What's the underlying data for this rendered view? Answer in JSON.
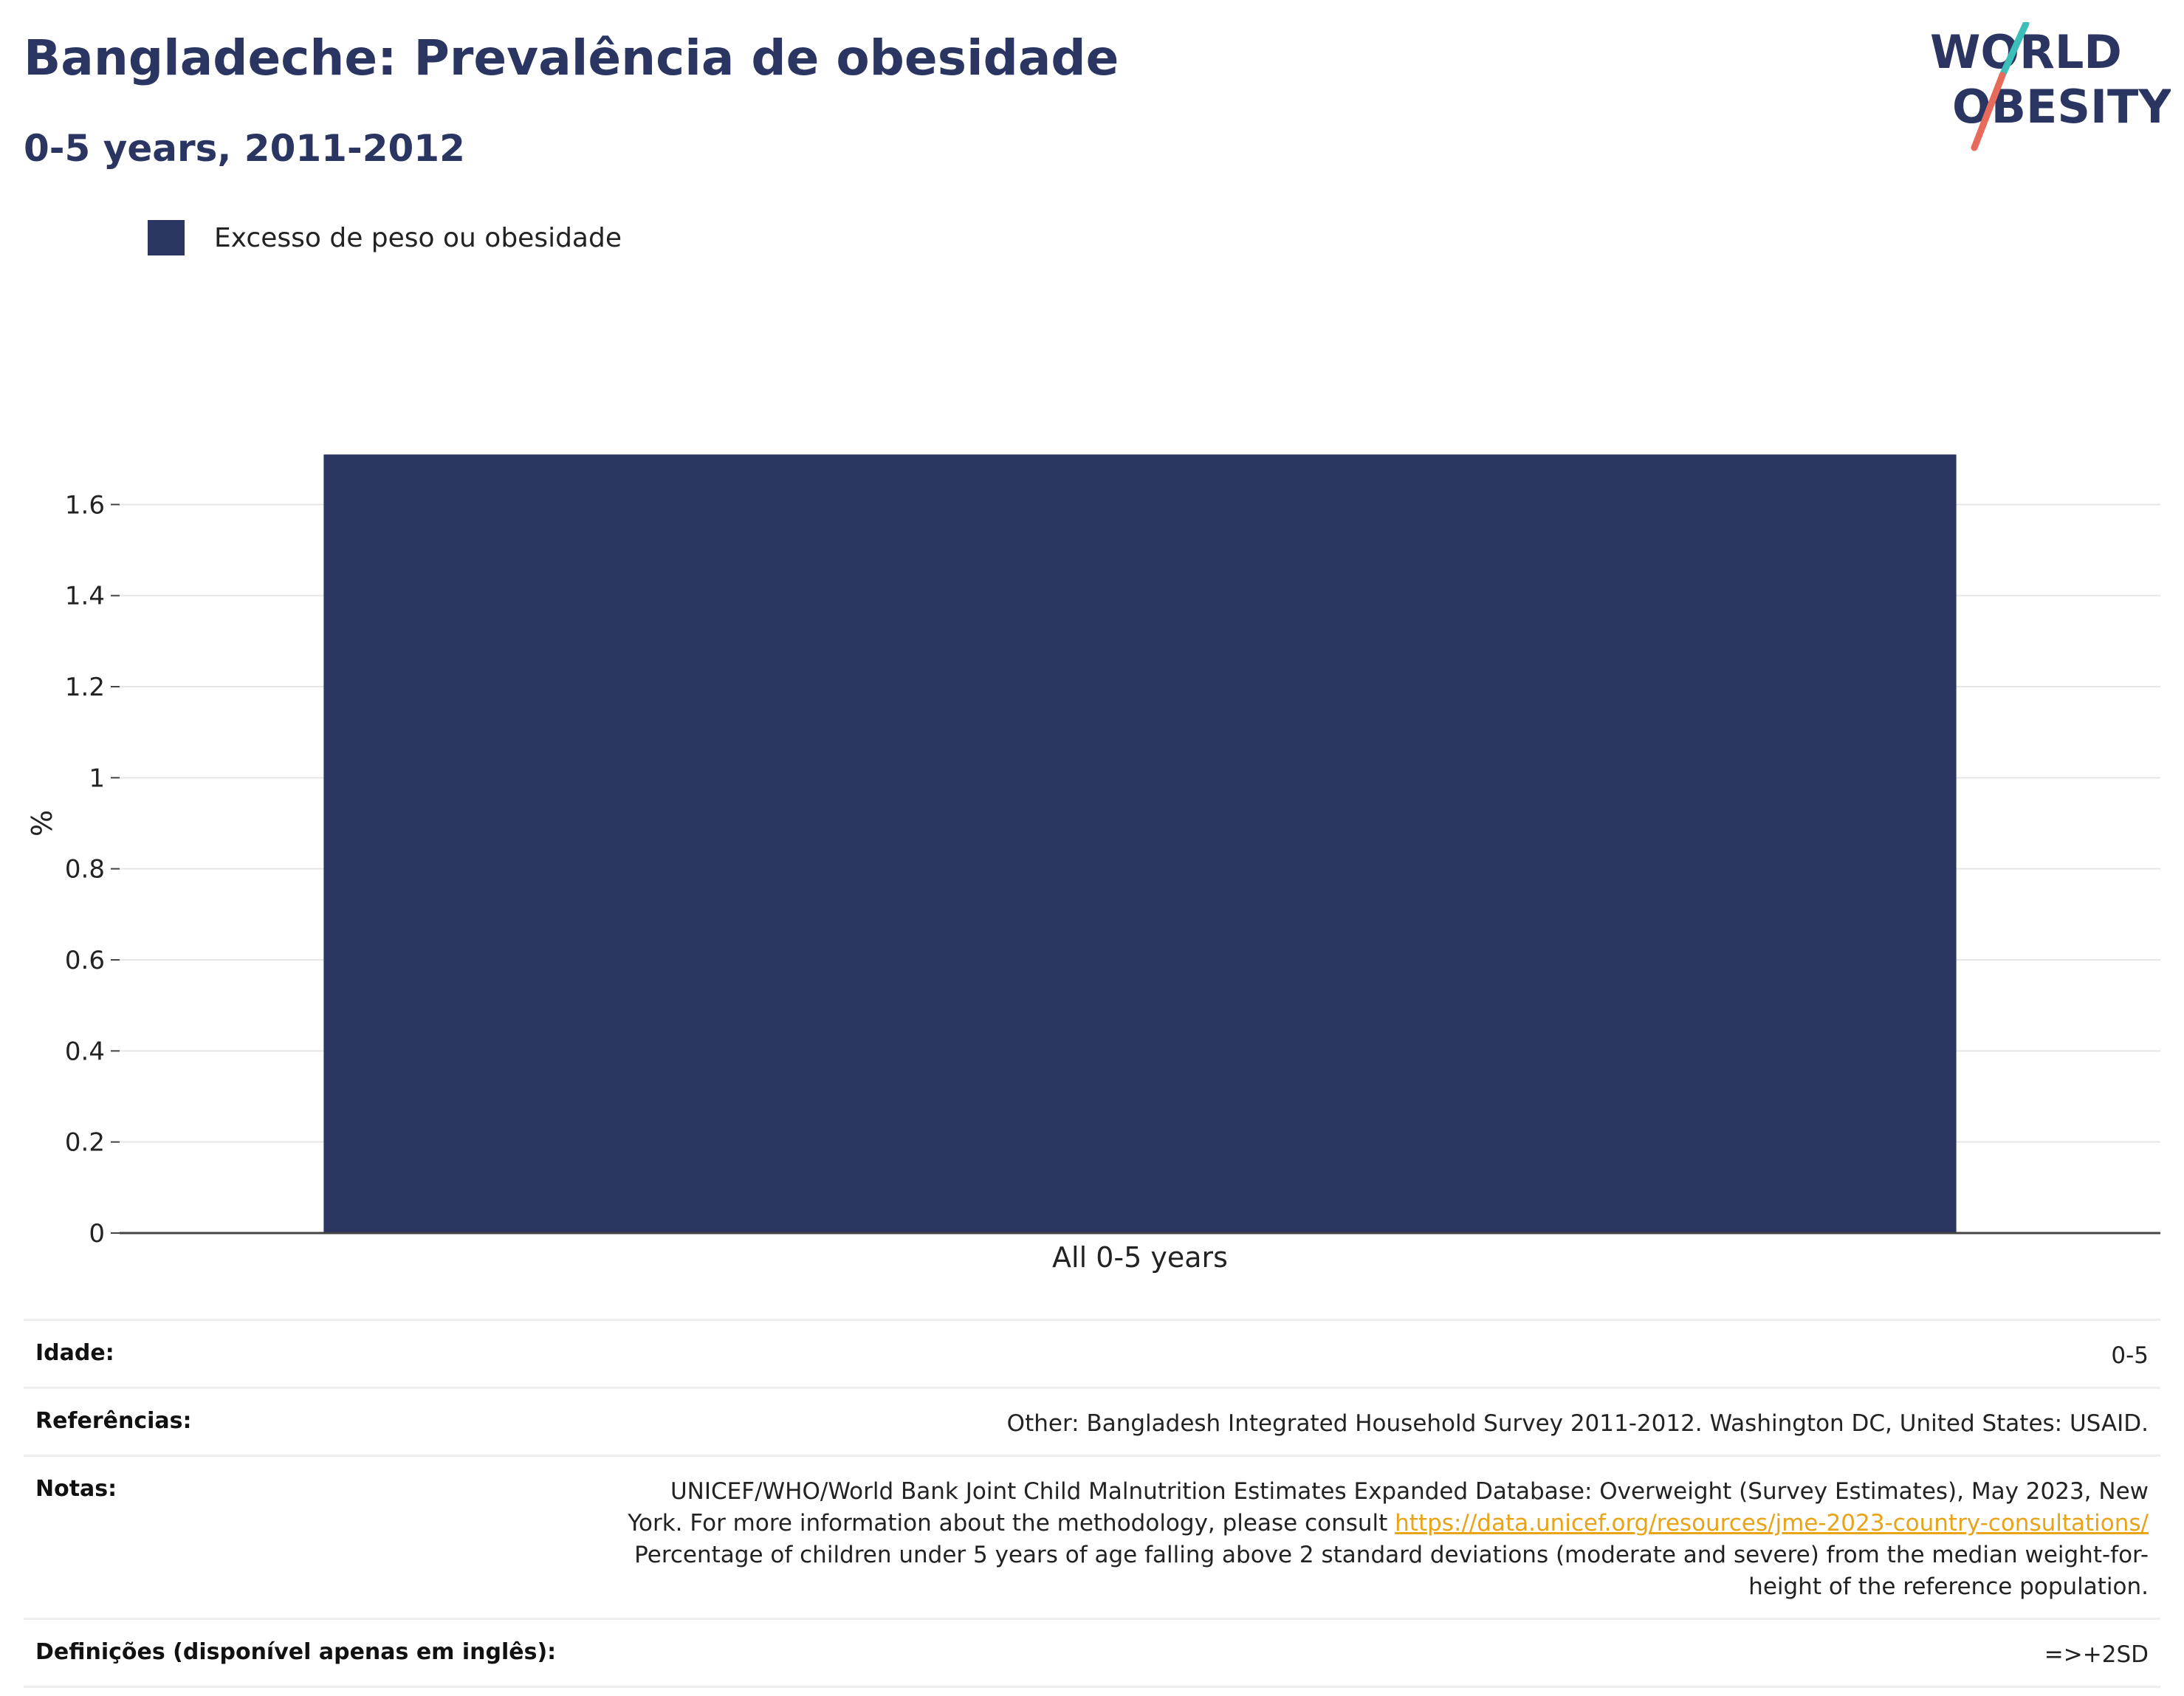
{
  "header": {
    "title": "Bangladeche: Prevalência de obesidade",
    "subtitle": "0-5 years, 2011-2012"
  },
  "logo": {
    "line1": "WORLD",
    "line2": "OBESITY",
    "colors": {
      "text": "#2b3561",
      "slash_top": "#3bbfb8",
      "slash_bottom": "#e86a5a"
    }
  },
  "legend": {
    "items": [
      {
        "label": "Excesso de peso ou obesidade",
        "color": "#2b3561"
      }
    ]
  },
  "chart_data": {
    "type": "bar",
    "categories": [
      "All 0-5 years"
    ],
    "series": [
      {
        "name": "Excesso de peso ou obesidade",
        "values": [
          1.71
        ],
        "color": "#2b3561"
      }
    ],
    "ylabel": "%",
    "xlabel": "",
    "ylim": [
      0,
      1.8
    ],
    "yticks": [
      0,
      0.2,
      0.4,
      0.6,
      0.8,
      1,
      1.2,
      1.4,
      1.6
    ],
    "ytick_labels": [
      "0",
      "0.2",
      "0.4",
      "0.6",
      "0.8",
      "1",
      "1.2",
      "1.4",
      "1.6"
    ],
    "grid": true,
    "legend_position": "top-left"
  },
  "info": {
    "age": {
      "label": "Idade:",
      "value": "0-5"
    },
    "references": {
      "label": "Referências:",
      "value": "Other: Bangladesh Integrated Household Survey 2011-2012. Washington DC, United States: USAID."
    },
    "notes": {
      "label": "Notas:",
      "text_before": "UNICEF/WHO/World Bank Joint Child Malnutrition Estimates Expanded Database: Overweight (Survey Estimates), May 2023, New York. For more information about the methodology, please consult ",
      "link": "https://data.unicef.org/resources/jme-2023-country-consultations/",
      "text_after": " Percentage of children under 5 years of age falling above 2 standard deviations (moderate and severe) from the median weight-for-height of the reference population."
    },
    "definitions": {
      "label": "Definições (disponível apenas em inglês):",
      "value": "=>+2SD"
    }
  }
}
